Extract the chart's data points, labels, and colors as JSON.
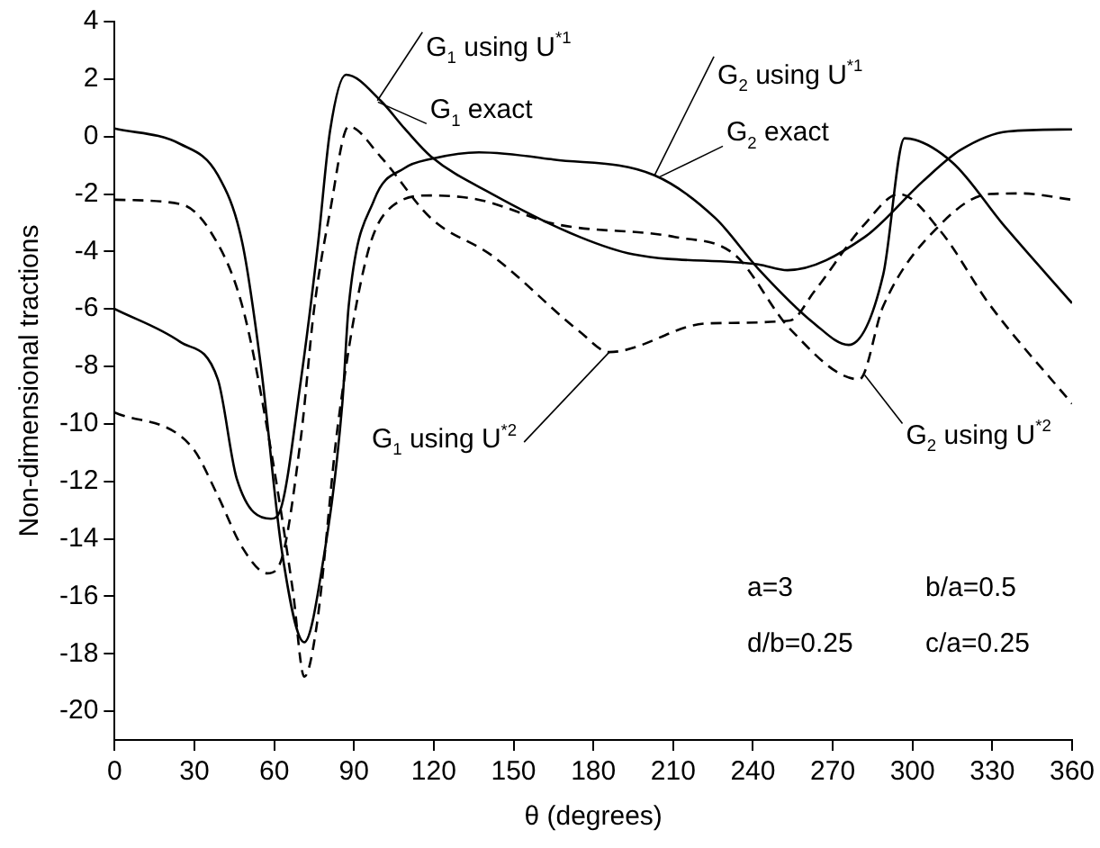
{
  "chart_data": {
    "type": "line",
    "xlabel": "θ (degrees)",
    "ylabel": "Non-dimensional tractions",
    "xlim": [
      0,
      360
    ],
    "xticks": [
      0,
      30,
      60,
      90,
      120,
      150,
      180,
      210,
      240,
      270,
      300,
      330,
      360
    ],
    "ylim": [
      -21,
      4
    ],
    "yticks": [
      -20,
      -18,
      -16,
      -14,
      -12,
      -10,
      -8,
      -6,
      -4,
      -2,
      0,
      2,
      4
    ],
    "grid": false,
    "legend": false,
    "marker": "none",
    "series": [
      {
        "color": "#000000",
        "line_style": "solid",
        "x": [
          0,
          24.7,
          38.8,
          45.9,
          58.8,
          62.3,
          70,
          76.5,
          81,
          87,
          100,
          109,
          119,
          142,
          175,
          195,
          242,
          253,
          282,
          304,
          318,
          336,
          360
        ],
        "values": [
          -6.0,
          -7.15,
          -8.45,
          -11.9,
          -13.3,
          -13.0,
          -8.5,
          -3.7,
          0.2,
          2.15,
          1.25,
          0.28,
          -0.7,
          -2.0,
          -3.5,
          -4.1,
          -4.45,
          -4.65,
          -3.5,
          -1.55,
          -0.47,
          0.18,
          0.25
        ]
      },
      {
        "color": "#000000",
        "line_style": "solid",
        "x": [
          0,
          24.7,
          38.8,
          48,
          55,
          63,
          71.3,
          78,
          85.6,
          88,
          97.6,
          109,
          119,
          137,
          165,
          203,
          226,
          242,
          263,
          276,
          289,
          297,
          315,
          334,
          360
        ],
        "values": [
          0.28,
          -0.26,
          -1.34,
          -3.7,
          -8.0,
          -14.5,
          -17.6,
          -15.0,
          -9.3,
          -5.9,
          -2.2,
          -1.1,
          -0.78,
          -0.55,
          -0.8,
          -1.35,
          -2.85,
          -4.6,
          -6.5,
          -7.25,
          -4.8,
          -0.06,
          -0.9,
          -3.05,
          -5.8
        ]
      },
      {
        "color": "#000000",
        "line_style": "dashed",
        "x": [
          0,
          29,
          38.8,
          48,
          57.4,
          62,
          70,
          75,
          81,
          88,
          100,
          119,
          142,
          175,
          186,
          223,
          254,
          263,
          282,
          295,
          310.6,
          329,
          360
        ],
        "values": [
          -9.6,
          -10.8,
          -12.5,
          -14.3,
          -15.2,
          -14.9,
          -10.5,
          -6.0,
          -2.6,
          0.35,
          -0.7,
          -2.85,
          -4.15,
          -6.8,
          -7.5,
          -6.5,
          -6.4,
          -5.4,
          -3.05,
          -2.0,
          -3.3,
          -5.85,
          -9.3
        ]
      },
      {
        "color": "#000000",
        "line_style": "dashed",
        "x": [
          0,
          24.7,
          36,
          48,
          58,
          67,
          71.3,
          76,
          84,
          95,
          104.7,
          119,
          137,
          166,
          211,
          233,
          254,
          280,
          289,
          310.6,
          329,
          341,
          360
        ],
        "values": [
          -2.2,
          -2.35,
          -3.3,
          -5.9,
          -10.5,
          -15.8,
          -18.8,
          -17.0,
          -10.0,
          -4.1,
          -2.4,
          -2.05,
          -2.2,
          -3.05,
          -3.5,
          -4.1,
          -6.7,
          -8.45,
          -5.9,
          -3.05,
          -2.0,
          -1.98,
          -2.2
        ]
      }
    ],
    "annotations": [
      {
        "text": "G$_{1}$ using U$^{*1}$",
        "x": 98.8,
        "y": 1.25
      },
      {
        "text": "G$_{1}$ exact",
        "x": 99,
        "y": 1.2
      },
      {
        "text": "G$_{2}$ using U$^{*1}$",
        "x": 203,
        "y": -1.35
      },
      {
        "text": "G$_{2}$ exact",
        "x": 205,
        "y": -1.4
      },
      {
        "text": "G$_{1}$ using U$^{*2}$",
        "x": 186,
        "y": -7.5
      },
      {
        "text": "G$_{2}$ using U$^{*2}$",
        "x": 282,
        "y": -8.3
      },
      "a=3",
      "b/a=0.5",
      "d/b=0.25",
      "c/a=0.25"
    ]
  }
}
